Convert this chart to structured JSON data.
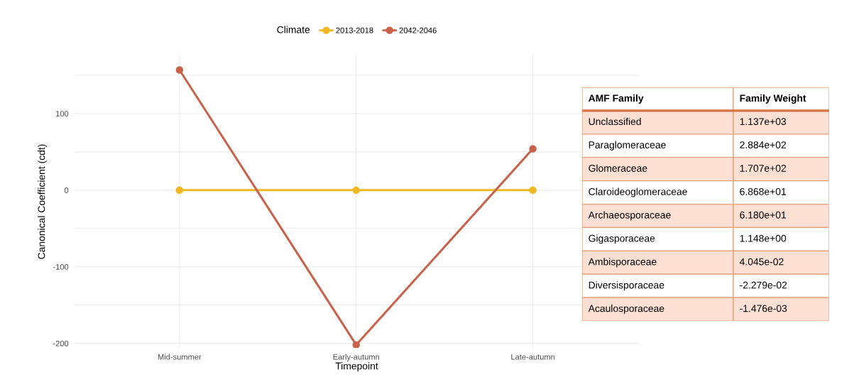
{
  "chart_data": [
    {
      "type": "line",
      "xlabel": "Timepoint",
      "ylabel": "Canonical Coefficient (cdt)",
      "legend_title": "Climate",
      "categories": [
        "Mid-summer",
        "Early-autumn",
        "Late-autumn"
      ],
      "series": [
        {
          "name": "2013-2018",
          "color": "#f2b824",
          "values": [
            0,
            0,
            0
          ]
        },
        {
          "name": "2042-2046",
          "color": "#c8624a",
          "values": [
            157,
            -202,
            54
          ]
        }
      ],
      "ylim": [
        -206,
        176
      ],
      "yticks": [
        -200,
        {
          "value": -150,
          "label": null
        },
        -100,
        {
          "value": -50,
          "label": null
        },
        0,
        {
          "value": 50,
          "label": null
        },
        100,
        {
          "value": 150,
          "label": null
        }
      ],
      "grid": true,
      "legend": "top",
      "marker": "circle",
      "line_style": "solid"
    },
    {
      "type": "other",
      "annotations": [
        "AMF Family",
        "Family Weight",
        "Unclassified",
        "1.137e+03",
        "Paraglomeraceae",
        "2.884e+02",
        "Glomeraceae",
        "1.707e+02",
        "Claroideoglomeraceae",
        "6.868e+01",
        "Archaeosporaceae",
        "6.180e+01",
        "Gigasporaceae",
        "1.148e+00",
        "Ambisporaceae",
        "4.045e-02",
        "Diversisporaceae",
        "-2.279e-02",
        "Acaulosporaceae",
        "-1.476e-03"
      ]
    }
  ]
}
